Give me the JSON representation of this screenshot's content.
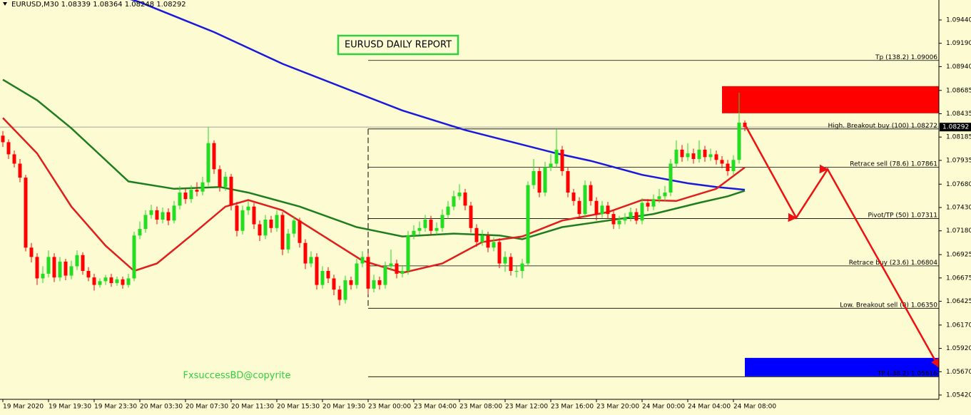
{
  "chart_data": {
    "type": "candlestick",
    "symbol": "EURUSD,M30",
    "title": "EURUSD DAILY REPORT",
    "watermark": "FxsuccessBD@copyrite",
    "bull_color": "#22dd22",
    "bear_color": "#ff0000",
    "xlim": [
      -0.5,
      164
    ],
    "ylim": [
      1.05374,
      1.09654
    ],
    "xticks": [
      {
        "value": 0,
        "label": "19 Mar 2020"
      },
      {
        "value": 8,
        "label": "19 Mar 19:30"
      },
      {
        "value": 16,
        "label": "19 Mar 23:30"
      },
      {
        "value": 24,
        "label": "20 Mar 03:30"
      },
      {
        "value": 32,
        "label": "20 Mar 07:30"
      },
      {
        "value": 40,
        "label": "20 Mar 11:30"
      },
      {
        "value": 48,
        "label": "20 Mar 15:30"
      },
      {
        "value": 56,
        "label": "20 Mar 19:30"
      },
      {
        "value": 64,
        "label": "23 Mar 00:00"
      },
      {
        "value": 72,
        "label": "23 Mar 04:00"
      },
      {
        "value": 80,
        "label": "23 Mar 08:00"
      },
      {
        "value": 88,
        "label": "23 Mar 12:00"
      },
      {
        "value": 96,
        "label": "23 Mar 16:00"
      },
      {
        "value": 104,
        "label": "23 Mar 20:00"
      },
      {
        "value": 112,
        "label": "24 Mar 00:00"
      },
      {
        "value": 120,
        "label": "24 Mar 04:00"
      },
      {
        "value": 128,
        "label": "24 Mar 08:00"
      }
    ],
    "yticks": [
      {
        "value": 1.0944,
        "label": "1.09440"
      },
      {
        "value": 1.0919,
        "label": "1.09190"
      },
      {
        "value": 1.0894,
        "label": "1.08940"
      },
      1.08685,
      1.08435,
      1.08185,
      1.07935,
      {
        "value": 1.0768,
        "label": "1.07680"
      },
      {
        "value": 1.0743,
        "label": "1.07430"
      },
      {
        "value": 1.0718,
        "label": "1.07180"
      },
      1.06925,
      1.06675,
      1.06425,
      {
        "value": 1.0617,
        "label": "1.06170"
      },
      {
        "value": 1.0592,
        "label": "1.05920"
      },
      {
        "value": 1.0567,
        "label": "1.05670"
      },
      {
        "value": 1.0542,
        "label": "1.05420"
      }
    ],
    "open": [
      1.082,
      1.0813,
      1.08,
      1.079,
      1.0775,
      1.07,
      1.069,
      1.0667,
      1.0672,
      1.069,
      1.0668,
      1.0685,
      1.067,
      1.068,
      1.0692,
      1.0675,
      1.0668,
      1.066,
      1.0664,
      1.0668,
      1.0662,
      1.0666,
      1.066,
      1.0667,
      1.0713,
      1.072,
      1.0735,
      1.074,
      1.073,
      1.0738,
      1.0729,
      1.0745,
      1.0759,
      1.0752,
      1.0762,
      1.076,
      1.077,
      1.0812,
      1.0784,
      1.0765,
      1.0776,
      1.0745,
      1.0718,
      1.074,
      1.0744,
      1.0725,
      1.0713,
      1.073,
      1.0721,
      1.0735,
      1.0698,
      1.0715,
      1.0729,
      1.0705,
      1.0683,
      1.069,
      1.066,
      1.0675,
      1.0667,
      1.0655,
      1.0644,
      1.0665,
      1.066,
      1.0683,
      1.069,
      1.0656,
      1.0665,
      1.066,
      1.068,
      1.0683,
      1.0672,
      1.0675,
      1.0713,
      1.0718,
      1.0721,
      1.073,
      1.0718,
      1.0721,
      1.0735,
      1.0744,
      1.0755,
      1.0759,
      1.0745,
      1.0721,
      1.0706,
      1.0713,
      1.07,
      1.0706,
      1.0683,
      1.069,
      1.0675,
      1.0675,
      1.0683,
      1.0767,
      1.0782,
      1.0759,
      1.0786,
      1.079,
      1.0805,
      1.0782,
      1.0759,
      1.075,
      1.0736,
      1.0767,
      1.075,
      1.0736,
      1.0745,
      1.0736,
      1.0725,
      1.0729,
      1.0732,
      1.0738,
      1.0729,
      1.0748,
      1.0744,
      1.0752,
      1.0755,
      1.0759,
      1.079,
      1.0805,
      1.0797,
      1.0801,
      1.0795,
      1.0805,
      1.0797,
      1.08,
      1.0794,
      1.079,
      1.0782,
      1.0794,
      1.08339
    ],
    "high": [
      1.0825,
      1.0816,
      1.0804,
      1.0795,
      1.0778,
      1.0705,
      1.0694,
      1.068,
      1.0697,
      1.0694,
      1.069,
      1.0688,
      1.0686,
      1.0697,
      1.0695,
      1.0679,
      1.0672,
      1.0667,
      1.0671,
      1.0672,
      1.0669,
      1.0669,
      1.0672,
      1.0717,
      1.0728,
      1.074,
      1.0746,
      1.0744,
      1.0743,
      1.0742,
      1.075,
      1.0766,
      1.0763,
      1.0767,
      1.077,
      1.0776,
      1.0829,
      1.0815,
      1.0788,
      1.0781,
      1.0779,
      1.0749,
      1.0745,
      1.075,
      1.0748,
      1.0729,
      1.0735,
      1.0734,
      1.074,
      1.0738,
      1.072,
      1.0734,
      1.0732,
      1.0709,
      1.0696,
      1.0694,
      1.068,
      1.0679,
      1.0671,
      1.0659,
      1.067,
      1.0669,
      1.0688,
      1.0696,
      1.0694,
      1.0671,
      1.0669,
      1.0685,
      1.0698,
      1.0687,
      1.068,
      1.0718,
      1.0724,
      1.0728,
      1.0735,
      1.0734,
      1.0727,
      1.0741,
      1.075,
      1.0761,
      1.0768,
      1.0763,
      1.0749,
      1.0725,
      1.0719,
      1.0717,
      1.0711,
      1.071,
      1.0696,
      1.0694,
      1.068,
      1.0688,
      1.0771,
      1.0795,
      1.0786,
      1.0792,
      1.08,
      1.0827,
      1.0809,
      1.0786,
      1.0763,
      1.0754,
      1.0772,
      1.0771,
      1.0754,
      1.075,
      1.0749,
      1.074,
      1.0734,
      1.0737,
      1.0743,
      1.0742,
      1.0753,
      1.0752,
      1.0757,
      1.0763,
      1.0766,
      1.0795,
      1.0815,
      1.081,
      1.0812,
      1.0806,
      1.0815,
      1.0809,
      1.0806,
      1.0804,
      1.0798,
      1.0794,
      1.0799,
      1.0866,
      1.08364
    ],
    "low": [
      1.0808,
      1.0795,
      1.0786,
      1.077,
      1.0696,
      1.0684,
      1.066,
      1.0662,
      1.0668,
      1.0663,
      1.0664,
      1.0665,
      1.0666,
      1.0676,
      1.0671,
      1.0664,
      1.0654,
      1.0657,
      1.066,
      1.0658,
      1.0659,
      1.0656,
      1.0657,
      1.0664,
      1.0709,
      1.0716,
      1.0731,
      1.0725,
      1.0726,
      1.0724,
      1.0726,
      1.0741,
      1.0747,
      1.0748,
      1.0755,
      1.0756,
      1.0766,
      1.0779,
      1.076,
      1.0761,
      1.074,
      1.0712,
      1.0714,
      1.0735,
      1.072,
      1.0707,
      1.0709,
      1.0716,
      1.0717,
      1.0692,
      1.0694,
      1.0711,
      1.07,
      1.0677,
      1.0679,
      1.0655,
      1.0656,
      1.0662,
      1.0649,
      1.0638,
      1.064,
      1.0655,
      1.0656,
      1.0679,
      1.065,
      1.0652,
      1.0655,
      1.0656,
      1.0675,
      1.0667,
      1.0668,
      1.0671,
      1.0709,
      1.0714,
      1.0717,
      1.0713,
      1.0714,
      1.0717,
      1.0731,
      1.074,
      1.0751,
      1.074,
      1.0716,
      1.0701,
      1.0702,
      1.0695,
      1.0696,
      1.0678,
      1.0674,
      1.067,
      1.0668,
      1.0667,
      1.068,
      1.0763,
      1.0754,
      1.0755,
      1.0782,
      1.0786,
      1.0777,
      1.0754,
      1.0745,
      1.0731,
      1.0732,
      1.0745,
      1.0729,
      1.0732,
      1.0731,
      1.072,
      1.072,
      1.0725,
      1.0728,
      1.0725,
      1.0725,
      1.0739,
      1.074,
      1.0748,
      1.075,
      1.0755,
      1.0786,
      1.0792,
      1.0793,
      1.079,
      1.0791,
      1.0792,
      1.0793,
      1.0789,
      1.0785,
      1.0777,
      1.0778,
      1.079,
      1.08248
    ],
    "close": [
      1.0813,
      1.08,
      1.079,
      1.0775,
      1.07,
      1.069,
      1.0667,
      1.0672,
      1.069,
      1.0668,
      1.0685,
      1.067,
      1.068,
      1.0692,
      1.0675,
      1.0668,
      1.066,
      1.0664,
      1.0668,
      1.0662,
      1.0666,
      1.066,
      1.0667,
      1.0713,
      1.072,
      1.0735,
      1.074,
      1.073,
      1.0738,
      1.0729,
      1.0745,
      1.0759,
      1.0752,
      1.0762,
      1.076,
      1.077,
      1.0812,
      1.0784,
      1.0765,
      1.0776,
      1.0745,
      1.0718,
      1.074,
      1.0744,
      1.0725,
      1.0713,
      1.073,
      1.0721,
      1.0735,
      1.0698,
      1.0715,
      1.0729,
      1.0705,
      1.0683,
      1.069,
      1.066,
      1.0675,
      1.0667,
      1.0655,
      1.0644,
      1.0665,
      1.066,
      1.0683,
      1.069,
      1.0656,
      1.0665,
      1.066,
      1.068,
      1.0683,
      1.0672,
      1.0675,
      1.0713,
      1.0718,
      1.0721,
      1.073,
      1.0718,
      1.0721,
      1.0735,
      1.0744,
      1.0755,
      1.0759,
      1.0745,
      1.0721,
      1.0706,
      1.0713,
      1.07,
      1.0706,
      1.0683,
      1.069,
      1.0675,
      1.0675,
      1.0683,
      1.0767,
      1.0782,
      1.0759,
      1.0786,
      1.079,
      1.0805,
      1.0782,
      1.0759,
      1.075,
      1.0736,
      1.0767,
      1.075,
      1.0736,
      1.0745,
      1.0736,
      1.0725,
      1.0729,
      1.0732,
      1.0738,
      1.0729,
      1.0748,
      1.0744,
      1.0752,
      1.0755,
      1.0759,
      1.079,
      1.0805,
      1.0797,
      1.0801,
      1.0795,
      1.0805,
      1.0797,
      1.08,
      1.0794,
      1.079,
      1.0782,
      1.0794,
      1.08339,
      1.08292
    ],
    "indicators": [
      {
        "color": "#1a1adc",
        "x": [
          22,
          24,
          37,
          49,
          62,
          70,
          81,
          97,
          103,
          112,
          120,
          125,
          130
        ],
        "values": [
          1.0967,
          1.0963,
          1.0931,
          1.0897,
          1.0866,
          1.0847,
          1.0826,
          1.0801,
          1.0793,
          1.0778,
          1.0769,
          1.0765,
          1.0762
        ]
      },
      {
        "color": "#1e7d1e",
        "x": [
          0,
          6,
          12,
          22,
          30,
          38,
          43,
          52,
          62,
          70,
          79,
          87,
          91,
          98,
          106,
          114,
          122,
          127,
          130
        ],
        "values": [
          1.088,
          1.0858,
          1.0828,
          1.0771,
          1.0763,
          1.0765,
          1.0759,
          1.0744,
          1.0722,
          1.0712,
          1.0715,
          1.0713,
          1.0709,
          1.0722,
          1.0729,
          1.0736,
          1.0748,
          1.0755,
          1.0761
        ]
      },
      {
        "color": "#e01e1e",
        "x": [
          0,
          6,
          12,
          18,
          23,
          27,
          33,
          39,
          43,
          49,
          56,
          63,
          70,
          77,
          84,
          91,
          98,
          106,
          112,
          118,
          125,
          130
        ],
        "values": [
          1.0839,
          1.0801,
          1.0744,
          1.0702,
          1.0675,
          1.0683,
          1.0713,
          1.0744,
          1.0751,
          1.074,
          1.0713,
          1.0686,
          1.0673,
          1.0683,
          1.0706,
          1.0712,
          1.0729,
          1.0738,
          1.0751,
          1.075,
          1.0763,
          1.0786
        ]
      }
    ],
    "zones": [
      {
        "color": "#ff0000",
        "x0": 126,
        "y": [
          1.0844,
          1.0873
        ]
      },
      {
        "color": "#0000ff",
        "x0": 130,
        "y": [
          1.0562,
          1.05818
        ]
      }
    ],
    "fib": {
      "x0": 64,
      "color": "#000000",
      "levels": [
        {
          "label": "Tp (138.2)",
          "value": 1.09006
        },
        {
          "label": "High. Breakout buy (100)",
          "value": 1.08272
        },
        {
          "label": "Retrace sell (78.6)",
          "value": 1.07861
        },
        {
          "label": "Pivot/TP (50)",
          "value": 1.07311
        },
        {
          "label": "Retrace buy (23.6)",
          "value": 1.06804
        },
        {
          "label": "Low. Breakout sell (0)",
          "value": 1.0635,
          "value_label": "1.06350"
        },
        {
          "label": "TP (-38.2)",
          "value": 1.05616
        }
      ]
    },
    "arrow": {
      "color": "#ee1111",
      "x": [
        130,
        139,
        144.5,
        164
      ],
      "y": [
        1.0832,
        1.0732,
        1.0784,
        1.0572
      ]
    }
  }
}
